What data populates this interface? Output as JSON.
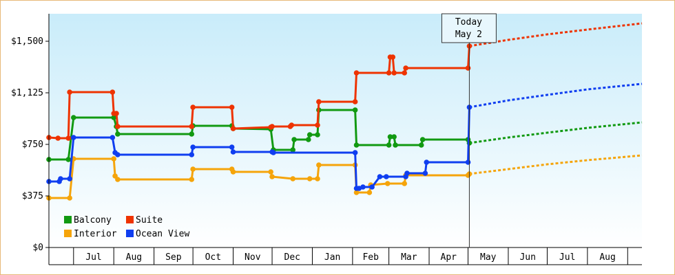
{
  "chart_data": {
    "type": "line",
    "y_axis": {
      "ylim": [
        0,
        1700
      ],
      "ticks": [
        0,
        375,
        750,
        1125,
        1500
      ],
      "tick_labels": [
        "$0",
        "$375",
        "$750",
        "$1,125",
        "$1,500"
      ]
    },
    "x_axis": {
      "months": [
        {
          "label": "Jul",
          "start": "2024-07-01",
          "end": "2024-08-01"
        },
        {
          "label": "Aug",
          "start": "2024-08-01",
          "end": "2024-09-01"
        },
        {
          "label": "Sep",
          "start": "2024-09-01",
          "end": "2024-10-01"
        },
        {
          "label": "Oct",
          "start": "2024-10-01",
          "end": "2024-11-01"
        },
        {
          "label": "Nov",
          "start": "2024-11-01",
          "end": "2024-12-01"
        },
        {
          "label": "Dec",
          "start": "2024-12-01",
          "end": "2025-01-01"
        },
        {
          "label": "Jan",
          "start": "2025-01-01",
          "end": "2025-02-01"
        },
        {
          "label": "Feb",
          "start": "2025-02-01",
          "end": "2025-03-01"
        },
        {
          "label": "Mar",
          "start": "2025-03-01",
          "end": "2025-04-01"
        },
        {
          "label": "Apr",
          "start": "2025-04-01",
          "end": "2025-05-01"
        },
        {
          "label": "May",
          "start": "2025-05-01",
          "end": "2025-06-01"
        },
        {
          "label": "Jun",
          "start": "2025-06-01",
          "end": "2025-07-01"
        },
        {
          "label": "Jul",
          "start": "2025-07-01",
          "end": "2025-08-01"
        },
        {
          "label": "Aug",
          "start": "2025-08-01",
          "end": "2025-09-01"
        }
      ],
      "xlim": [
        "2024-06-12",
        "2025-09-12"
      ]
    },
    "today": {
      "date": "2025-05-02",
      "line1": "Today",
      "line2": "May 2"
    },
    "legend": {
      "placement": "bottom-left"
    },
    "series": [
      {
        "name": "Balcony",
        "color": "#119911",
        "history": [
          [
            "2024-06-12",
            640
          ],
          [
            "2024-06-27",
            640
          ],
          [
            "2024-07-01",
            945
          ],
          [
            "2024-08-01",
            945
          ],
          [
            "2024-08-03",
            880
          ],
          [
            "2024-08-04",
            825
          ],
          [
            "2024-09-30",
            825
          ],
          [
            "2024-10-01",
            885
          ],
          [
            "2024-10-31",
            885
          ],
          [
            "2024-11-01",
            865
          ],
          [
            "2024-11-30",
            860
          ],
          [
            "2024-12-02",
            710
          ],
          [
            "2024-12-17",
            710
          ],
          [
            "2024-12-18",
            785
          ],
          [
            "2024-12-29",
            785
          ],
          [
            "2024-12-30",
            820
          ],
          [
            "2025-01-05",
            820
          ],
          [
            "2025-01-06",
            1000
          ],
          [
            "2025-02-03",
            1000
          ],
          [
            "2025-02-04",
            745
          ],
          [
            "2025-03-01",
            745
          ],
          [
            "2025-03-02",
            805
          ],
          [
            "2025-03-05",
            805
          ],
          [
            "2025-03-06",
            745
          ],
          [
            "2025-03-26",
            745
          ],
          [
            "2025-03-27",
            785
          ],
          [
            "2025-05-01",
            785
          ],
          [
            "2025-05-02",
            760
          ]
        ],
        "forecast": [
          [
            "2025-05-02",
            760
          ],
          [
            "2025-06-01",
            800
          ],
          [
            "2025-07-01",
            835
          ],
          [
            "2025-08-01",
            870
          ],
          [
            "2025-09-12",
            910
          ]
        ]
      },
      {
        "name": "Suite",
        "color": "#ee3300",
        "history": [
          [
            "2024-06-12",
            800
          ],
          [
            "2024-06-19",
            795
          ],
          [
            "2024-06-27",
            795
          ],
          [
            "2024-06-28",
            1130
          ],
          [
            "2024-07-31",
            1130
          ],
          [
            "2024-08-01",
            975
          ],
          [
            "2024-08-03",
            975
          ],
          [
            "2024-08-04",
            880
          ],
          [
            "2024-09-30",
            880
          ],
          [
            "2024-10-01",
            1020
          ],
          [
            "2024-10-31",
            1020
          ],
          [
            "2024-11-01",
            865
          ],
          [
            "2024-11-30",
            875
          ],
          [
            "2024-12-01",
            880
          ],
          [
            "2024-12-15",
            880
          ],
          [
            "2024-12-16",
            890
          ],
          [
            "2025-01-05",
            890
          ],
          [
            "2025-01-06",
            1060
          ],
          [
            "2025-02-03",
            1060
          ],
          [
            "2025-02-04",
            1270
          ],
          [
            "2025-03-01",
            1270
          ],
          [
            "2025-03-02",
            1385
          ],
          [
            "2025-03-04",
            1385
          ],
          [
            "2025-03-05",
            1270
          ],
          [
            "2025-03-13",
            1270
          ],
          [
            "2025-03-14",
            1305
          ],
          [
            "2025-05-01",
            1305
          ],
          [
            "2025-05-02",
            1465
          ]
        ],
        "forecast": [
          [
            "2025-05-02",
            1465
          ],
          [
            "2025-06-01",
            1510
          ],
          [
            "2025-07-01",
            1550
          ],
          [
            "2025-08-01",
            1585
          ],
          [
            "2025-09-12",
            1630
          ]
        ]
      },
      {
        "name": "Interior",
        "color": "#f5a40a",
        "history": [
          [
            "2024-06-12",
            360
          ],
          [
            "2024-06-28",
            360
          ],
          [
            "2024-07-01",
            645
          ],
          [
            "2024-08-01",
            645
          ],
          [
            "2024-08-02",
            520
          ],
          [
            "2024-08-04",
            495
          ],
          [
            "2024-09-30",
            495
          ],
          [
            "2024-10-01",
            570
          ],
          [
            "2024-10-31",
            570
          ],
          [
            "2024-11-01",
            550
          ],
          [
            "2024-11-30",
            550
          ],
          [
            "2024-12-01",
            515
          ],
          [
            "2024-12-17",
            500
          ],
          [
            "2024-12-30",
            500
          ],
          [
            "2025-01-05",
            500
          ],
          [
            "2025-01-06",
            600
          ],
          [
            "2025-02-03",
            600
          ],
          [
            "2025-02-04",
            400
          ],
          [
            "2025-02-14",
            400
          ],
          [
            "2025-02-15",
            455
          ],
          [
            "2025-02-28",
            465
          ],
          [
            "2025-03-13",
            465
          ],
          [
            "2025-03-14",
            525
          ],
          [
            "2025-05-01",
            525
          ],
          [
            "2025-05-02",
            535
          ]
        ],
        "forecast": [
          [
            "2025-05-02",
            535
          ],
          [
            "2025-06-01",
            570
          ],
          [
            "2025-07-01",
            605
          ],
          [
            "2025-08-01",
            635
          ],
          [
            "2025-09-12",
            670
          ]
        ]
      },
      {
        "name": "Ocean View",
        "color": "#0f3ef0",
        "history": [
          [
            "2024-06-12",
            480
          ],
          [
            "2024-06-20",
            480
          ],
          [
            "2024-06-21",
            500
          ],
          [
            "2024-06-28",
            500
          ],
          [
            "2024-07-01",
            800
          ],
          [
            "2024-07-31",
            800
          ],
          [
            "2024-08-02",
            690
          ],
          [
            "2024-08-04",
            675
          ],
          [
            "2024-09-30",
            675
          ],
          [
            "2024-10-01",
            730
          ],
          [
            "2024-10-31",
            730
          ],
          [
            "2024-11-01",
            695
          ],
          [
            "2024-12-01",
            695
          ],
          [
            "2024-12-02",
            690
          ],
          [
            "2025-02-03",
            690
          ],
          [
            "2025-02-04",
            430
          ],
          [
            "2025-02-06",
            430
          ],
          [
            "2025-02-09",
            440
          ],
          [
            "2025-02-16",
            440
          ],
          [
            "2025-02-22",
            515
          ],
          [
            "2025-02-27",
            515
          ],
          [
            "2025-03-14",
            515
          ],
          [
            "2025-03-15",
            540
          ],
          [
            "2025-03-29",
            540
          ],
          [
            "2025-03-30",
            620
          ],
          [
            "2025-05-01",
            620
          ],
          [
            "2025-05-02",
            1020
          ]
        ],
        "forecast": [
          [
            "2025-05-02",
            1020
          ],
          [
            "2025-06-01",
            1070
          ],
          [
            "2025-07-01",
            1110
          ],
          [
            "2025-08-01",
            1150
          ],
          [
            "2025-09-12",
            1190
          ]
        ]
      }
    ]
  }
}
